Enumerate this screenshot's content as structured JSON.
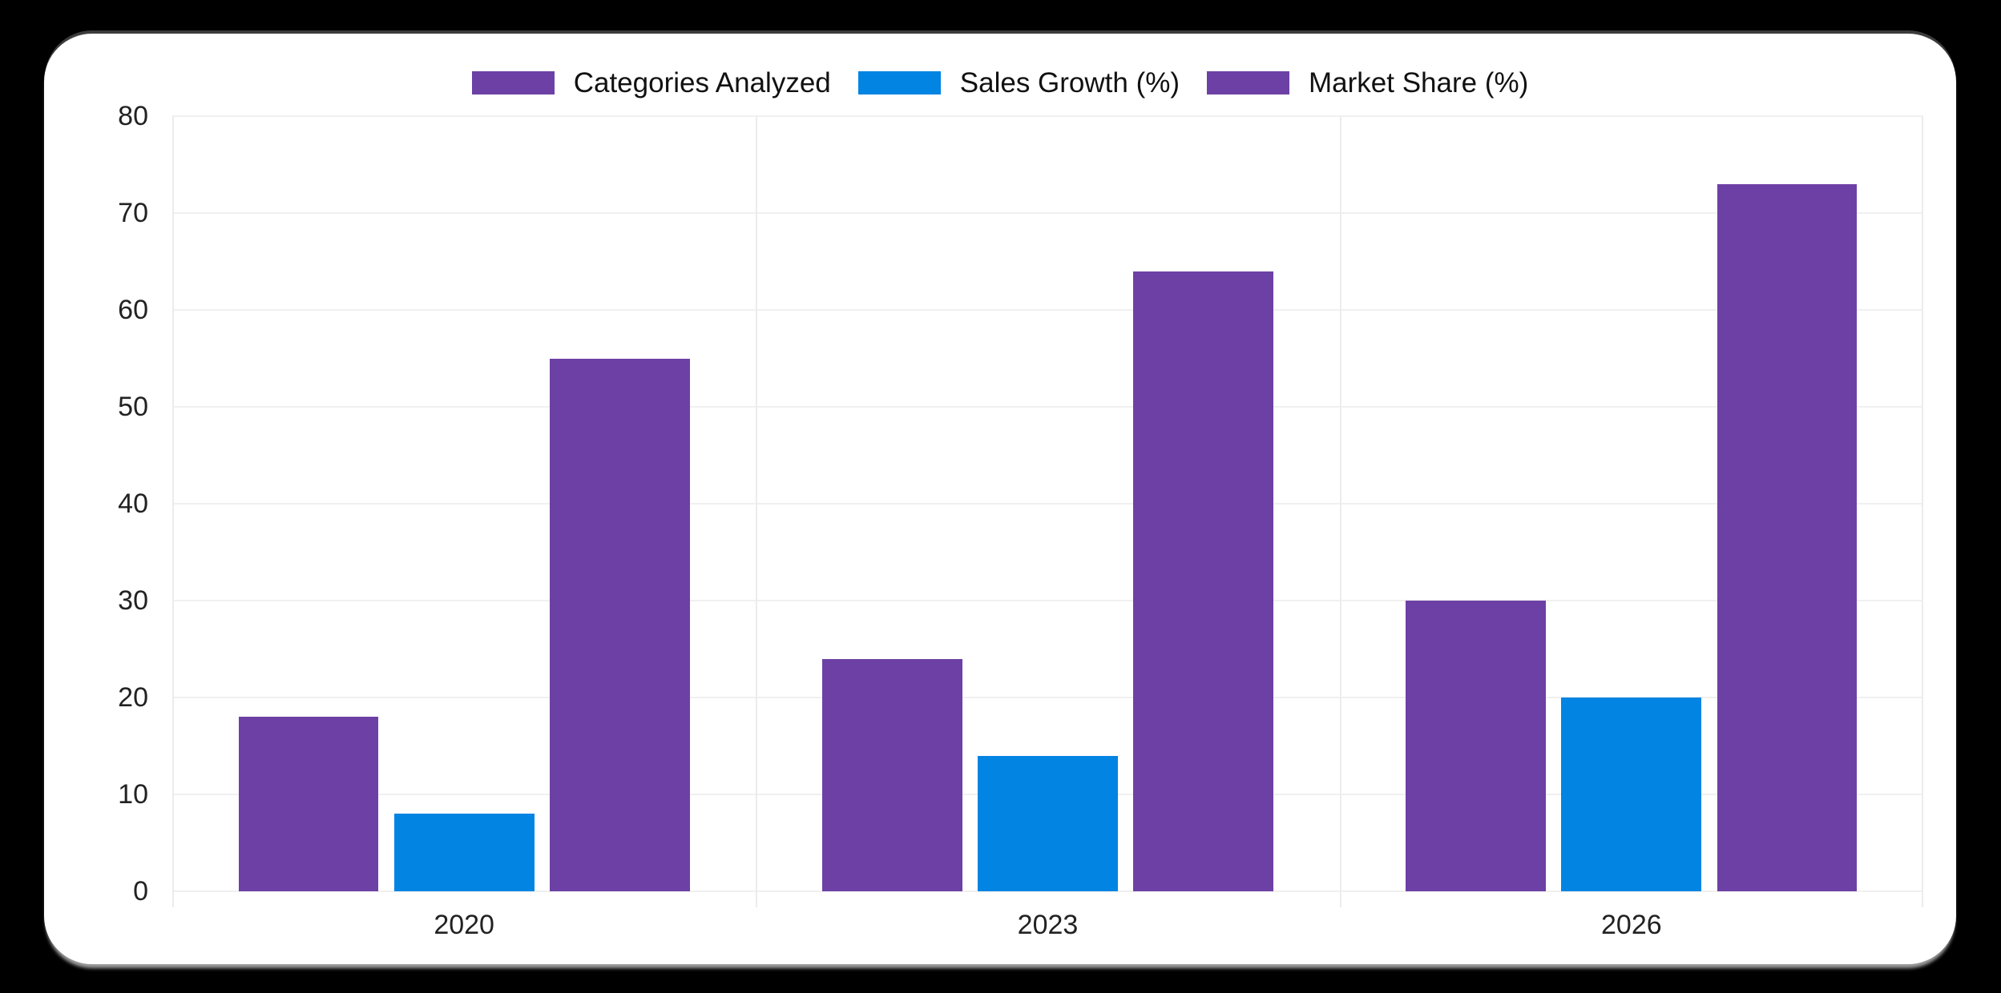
{
  "page": {
    "background_color": "#000000",
    "card_color": "#ffffff"
  },
  "chart_data": {
    "type": "bar",
    "categories": [
      "2020",
      "2023",
      "2026"
    ],
    "series": [
      {
        "name": "Categories Analyzed",
        "color": "#6d40a5",
        "values": [
          18,
          24,
          30
        ]
      },
      {
        "name": "Sales Growth (%)",
        "color": "#0284e3",
        "values": [
          8,
          14,
          20
        ]
      },
      {
        "name": "Market Share (%)",
        "color": "#6d40a5",
        "values": [
          55,
          64,
          73
        ]
      }
    ],
    "title": "",
    "xlabel": "",
    "ylabel": "",
    "ylim": [
      0,
      80
    ],
    "ytick_step": 10,
    "y_ticks": [
      "80",
      "70",
      "60",
      "50",
      "40",
      "30",
      "20",
      "10",
      "0"
    ],
    "grid": true,
    "legend_position": "top",
    "grid_color": "#f0f0f0",
    "tick_color": "#222222",
    "legend_text_color": "#111111"
  }
}
